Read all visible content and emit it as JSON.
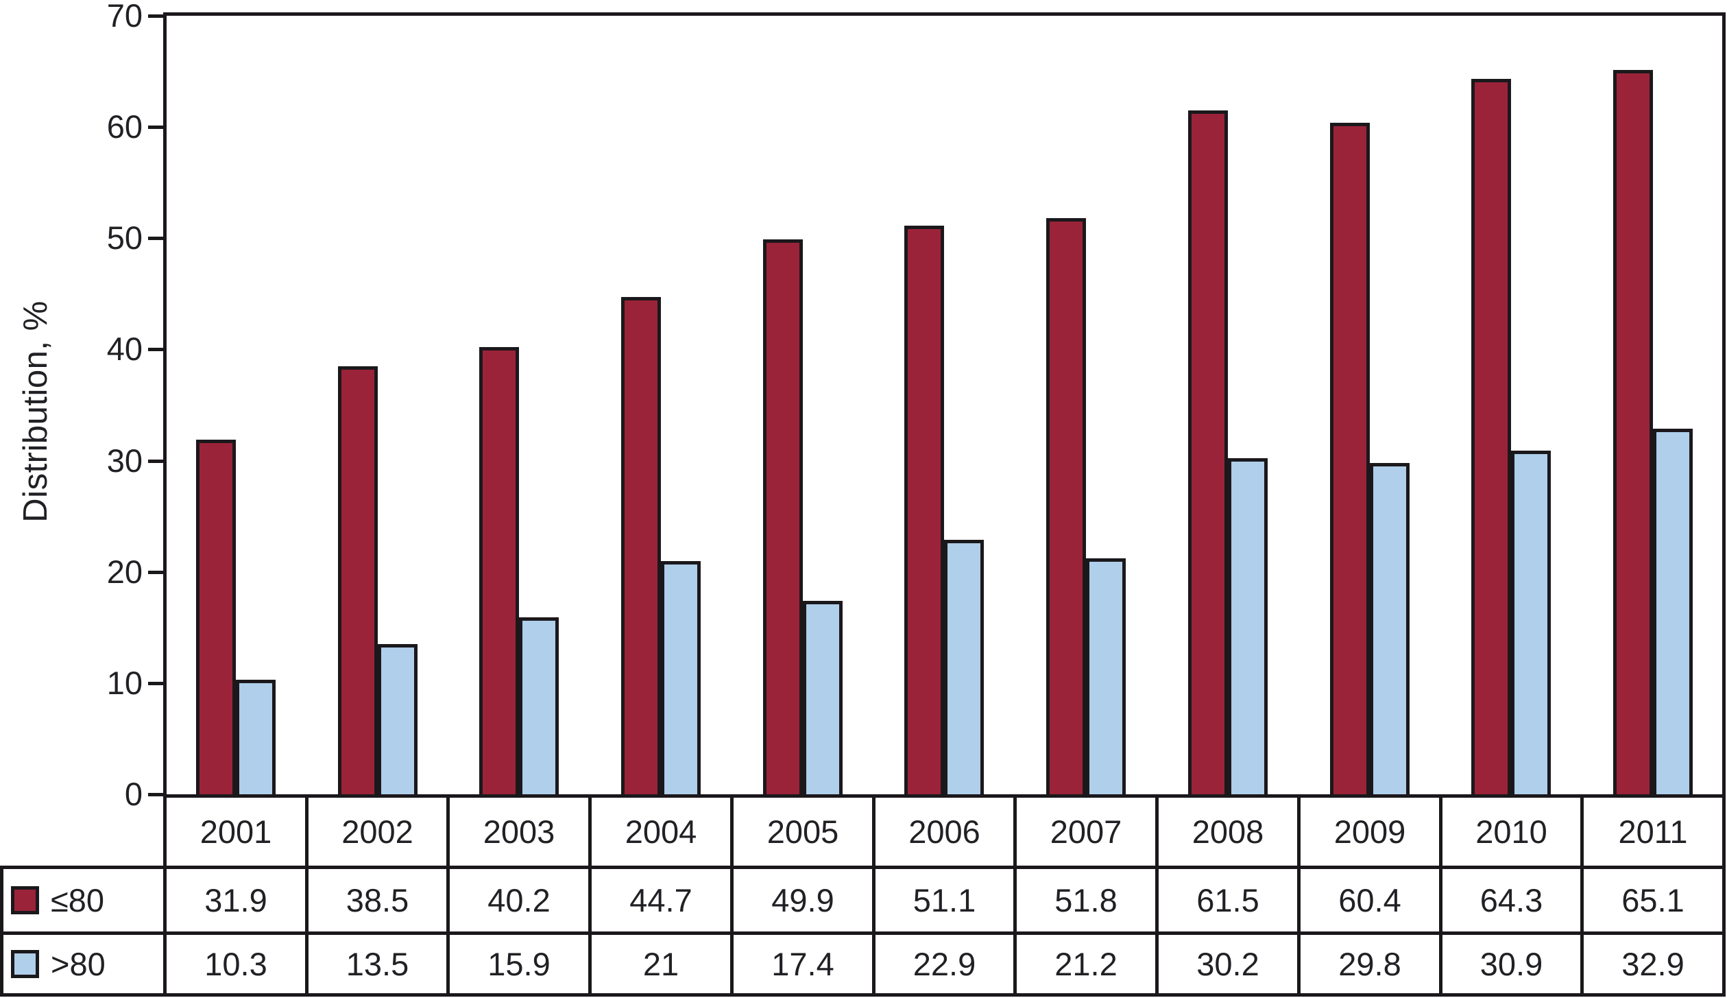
{
  "chart_data": {
    "type": "bar",
    "title": "",
    "xlabel": "",
    "ylabel": "Distribution, %",
    "ylim": [
      0,
      70
    ],
    "yticks": [
      0,
      10,
      20,
      30,
      40,
      50,
      60,
      70
    ],
    "grid": false,
    "legend_position": "table-rows-left",
    "categories": [
      "2001",
      "2002",
      "2003",
      "2004",
      "2005",
      "2006",
      "2007",
      "2008",
      "2009",
      "2010",
      "2011"
    ],
    "series": [
      {
        "name": "≤80",
        "color": "#9B2339",
        "values": [
          31.9,
          38.5,
          40.2,
          44.7,
          49.9,
          51.1,
          51.8,
          61.5,
          60.4,
          64.3,
          65.1
        ]
      },
      {
        "name": ">80",
        "color": "#AFCFEB",
        "values": [
          10.3,
          13.5,
          15.9,
          21,
          17.4,
          22.9,
          21.2,
          30.2,
          29.8,
          30.9,
          32.9
        ]
      }
    ]
  },
  "colors": {
    "line": "#1b181c",
    "text": "#222024",
    "background": "#ffffff",
    "series1": "#9B2339",
    "series2": "#AFCFEB"
  }
}
